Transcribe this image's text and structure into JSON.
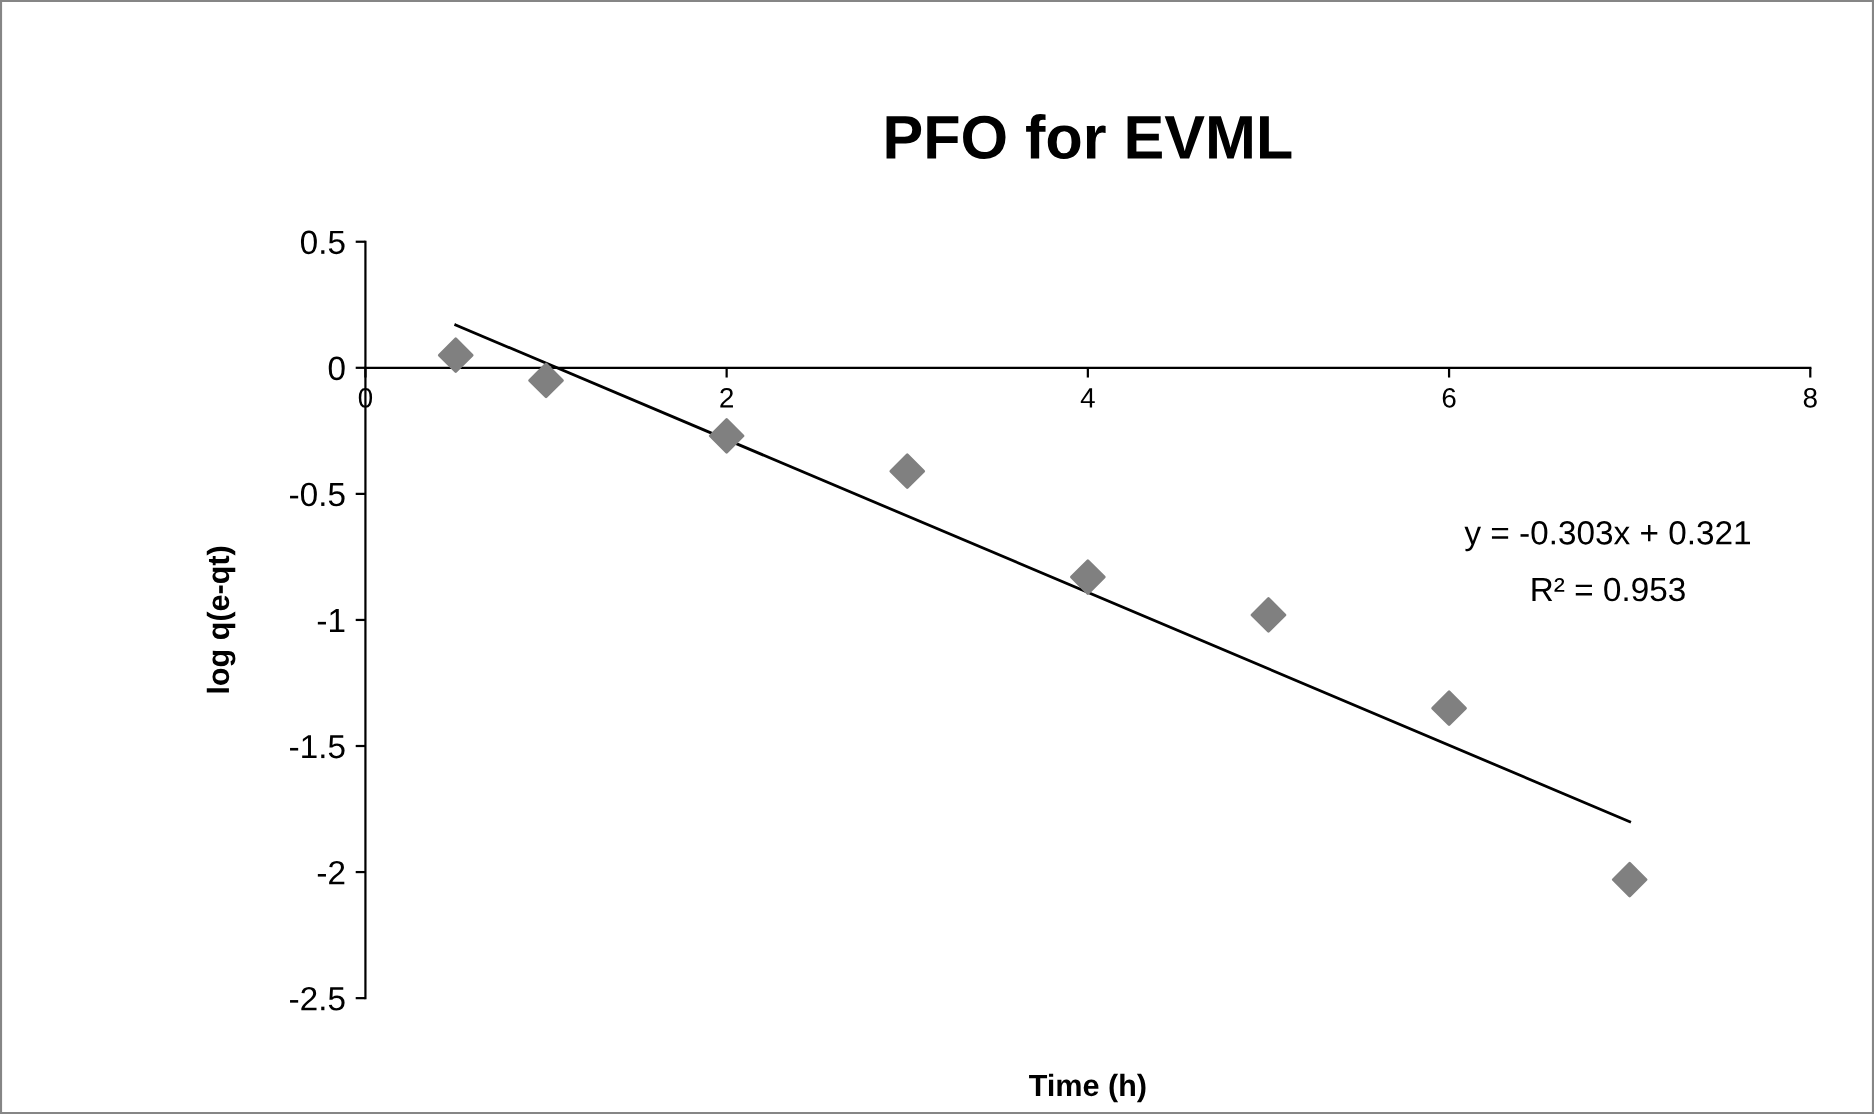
{
  "chart_data": {
    "type": "scatter",
    "title": "PFO for EVML",
    "xlabel": "Time (h)",
    "ylabel": "log q(e-qt)",
    "x": [
      0.5,
      1,
      2,
      3,
      4,
      5,
      6,
      7
    ],
    "series": [
      {
        "color": "#808080",
        "marker": "diamond",
        "values": [
          0.05,
          -0.05,
          -0.27,
          -0.41,
          -0.83,
          -0.98,
          -1.35,
          -2.03
        ]
      },
      {
        "type": "line",
        "color": "#000000",
        "x": [
          0.5,
          7
        ],
        "values": [
          0.17,
          -1.8
        ],
        "marker": "none",
        "line_style": "solid"
      }
    ],
    "annotations": [
      "y = -0.303x + 0.321",
      "R² = 0.953"
    ],
    "xlim": [
      0,
      8
    ],
    "ylim": [
      -2.5,
      0.5
    ],
    "xticks": [
      0,
      2,
      4,
      6,
      8
    ],
    "yticks": [
      0.5,
      0,
      -0.5,
      -1,
      -1.5,
      -2,
      -2.5
    ],
    "grid": false,
    "legend": false
  }
}
